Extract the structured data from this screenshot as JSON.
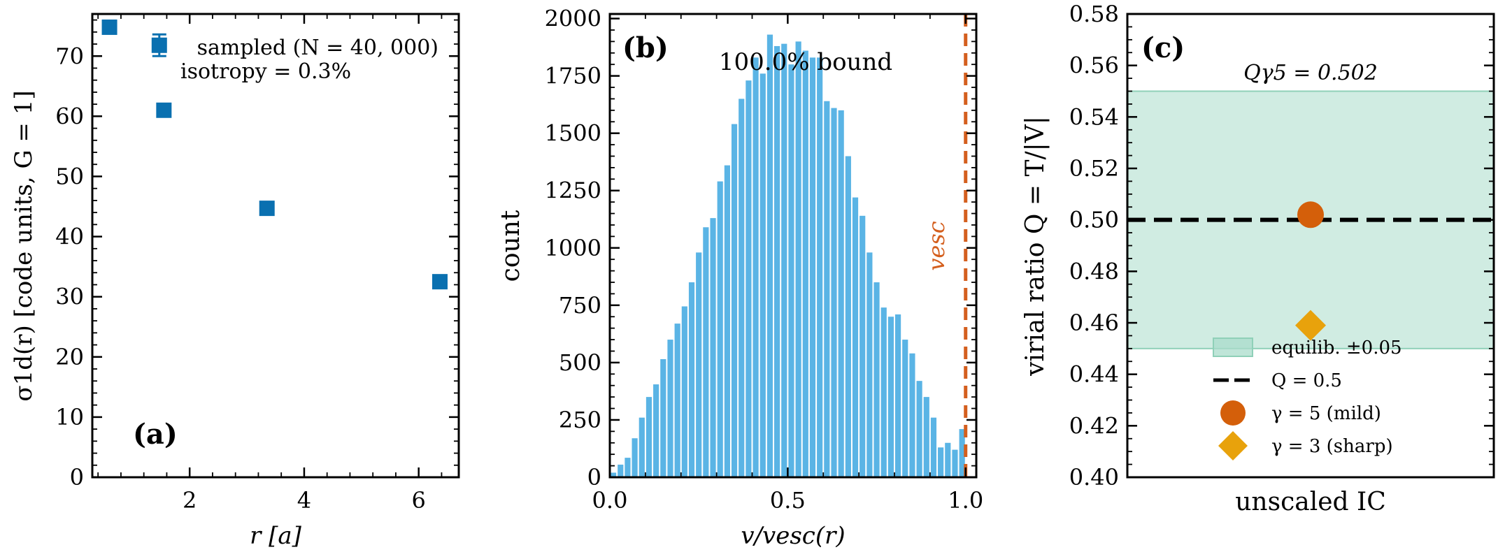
{
  "chart_data": [
    {
      "panel": "(a)",
      "type": "scatter",
      "xlabel": "r [a]",
      "ylabel": "σ1d(r) [code units, G = 1]",
      "xlim": [
        0.3,
        6.7
      ],
      "ylim": [
        0,
        77
      ],
      "xticks": [
        2,
        4,
        6
      ],
      "yticks": [
        0,
        10,
        20,
        30,
        40,
        50,
        60,
        70
      ],
      "annotation_line1": "sampled (N = 40, 000)",
      "annotation_line2": "isotropy = 0.3%",
      "points": [
        {
          "x": 0.6,
          "y": 74.8,
          "err": 0
        },
        {
          "x": 1.47,
          "y": 71.8,
          "err": 1.8
        },
        {
          "x": 1.55,
          "y": 61.0,
          "err": 0
        },
        {
          "x": 3.35,
          "y": 44.7,
          "err": 0
        },
        {
          "x": 6.37,
          "y": 32.5,
          "err": 0
        }
      ],
      "color": "#0a70b0"
    },
    {
      "panel": "(b)",
      "type": "bar",
      "xlabel": "v/vesc(r)",
      "ylabel": "count",
      "xlim": [
        0.0,
        1.03
      ],
      "ylim": [
        0,
        2020
      ],
      "xticks": [
        "0.0",
        "0.5",
        "1.0"
      ],
      "yticks": [
        0,
        250,
        500,
        750,
        1000,
        1250,
        1500,
        1750,
        2000
      ],
      "annotation": "100.0% bound",
      "vline_label": "vesc",
      "vline_x": 1.0,
      "bin_width": 0.02,
      "x": [
        0.01,
        0.03,
        0.05,
        0.07,
        0.09,
        0.11,
        0.13,
        0.15,
        0.17,
        0.19,
        0.21,
        0.23,
        0.25,
        0.27,
        0.29,
        0.31,
        0.33,
        0.35,
        0.37,
        0.39,
        0.41,
        0.43,
        0.45,
        0.47,
        0.49,
        0.51,
        0.53,
        0.55,
        0.57,
        0.59,
        0.61,
        0.63,
        0.65,
        0.67,
        0.69,
        0.71,
        0.73,
        0.75,
        0.77,
        0.79,
        0.81,
        0.83,
        0.85,
        0.87,
        0.89,
        0.91,
        0.93,
        0.95,
        0.97,
        0.99
      ],
      "values": [
        20,
        55,
        85,
        170,
        260,
        350,
        405,
        515,
        600,
        670,
        745,
        850,
        980,
        1090,
        1130,
        1290,
        1360,
        1540,
        1650,
        1730,
        1830,
        1760,
        1930,
        1880,
        1890,
        1800,
        1900,
        1860,
        1830,
        1830,
        1640,
        1610,
        1600,
        1400,
        1220,
        1140,
        980,
        850,
        740,
        700,
        710,
        600,
        540,
        420,
        350,
        260,
        130,
        150,
        120,
        210
      ],
      "bar_color": "#5ab4e5",
      "vline_color": "#d45f1e"
    },
    {
      "panel": "(c)",
      "type": "scatter",
      "xlabel": "unscaled IC",
      "ylabel": "virial ratio Q = T/|V|",
      "ylim": [
        0.4,
        0.58
      ],
      "yticks": [
        "0.40",
        "0.42",
        "0.44",
        "0.46",
        "0.48",
        "0.50",
        "0.52",
        "0.54",
        "0.56",
        "0.58"
      ],
      "annotation": "Qγ5 = 0.502",
      "band": [
        0.45,
        0.55
      ],
      "band_color": "#a9dccb",
      "hline": 0.5,
      "points": [
        {
          "name": "γ = 5 (mild)",
          "y": 0.502,
          "marker": "circle",
          "color": "#d45f0a"
        },
        {
          "name": "γ = 3 (sharp)",
          "y": 0.459,
          "marker": "diamond",
          "color": "#e8a20c"
        }
      ],
      "legend": [
        {
          "label": "equilib. ±0.05",
          "kind": "band"
        },
        {
          "label": "Q = 0.5",
          "kind": "dashed"
        },
        {
          "label": "γ = 5 (mild)",
          "kind": "circle"
        },
        {
          "label": "γ = 3 (sharp)",
          "kind": "diamond"
        }
      ]
    }
  ]
}
